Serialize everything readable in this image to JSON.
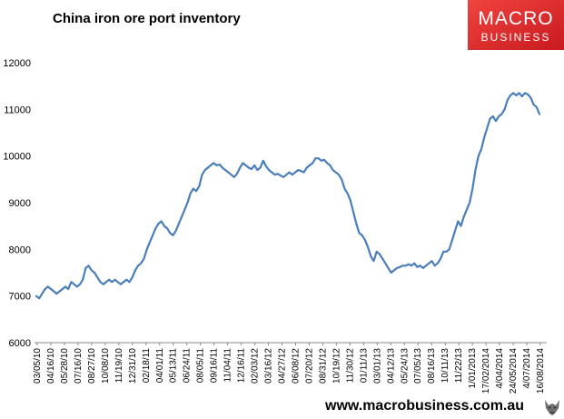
{
  "header": {
    "title": "China iron ore port inventory"
  },
  "logo": {
    "line1": "MACRO",
    "line2": "BUSINESS",
    "bg_color": "#e8262b"
  },
  "footer": {
    "url": "www.macrobusiness.com.au",
    "icon": "wolf-icon"
  },
  "chart_data": {
    "type": "line",
    "title": "China iron ore port inventory",
    "xlabel": "",
    "ylabel": "",
    "ylim": [
      6000,
      12000
    ],
    "yticks": [
      6000,
      7000,
      8000,
      9000,
      10000,
      11000,
      12000
    ],
    "grid": false,
    "legend": "none",
    "line_color": "#4a7ebb",
    "x_tick_labels": [
      "03/05/10",
      "04/16/10",
      "05/28/10",
      "07/16/10",
      "08/27/10",
      "10/08/10",
      "11/19/10",
      "12/31/10",
      "02/18/11",
      "04/01/11",
      "05/13/11",
      "06/24/11",
      "08/05/11",
      "09/16/11",
      "11/04/11",
      "12/16/11",
      "02/03/12",
      "03/16/12",
      "04/27/12",
      "06/08/12",
      "07/20/12",
      "08/31/12",
      "10/19/12",
      "11/30/12",
      "01/11/13",
      "03/01/13",
      "04/12/13",
      "05/24/13",
      "07/05/13",
      "08/16/13",
      "10/11/13",
      "11/22/13",
      "1/01/2013",
      "17/02/2014",
      "4/04/2014",
      "24/05/2014",
      "4/07/2014",
      "16/08/2014"
    ],
    "series": [
      {
        "values": [
          7000,
          6950,
          7050,
          7150,
          7200,
          7150,
          7100,
          7050,
          7100,
          7150,
          7200,
          7150,
          7300,
          7250,
          7200,
          7250,
          7350,
          7600,
          7650,
          7550,
          7500,
          7400,
          7300,
          7250,
          7300,
          7350,
          7300,
          7350,
          7300,
          7250,
          7300,
          7350,
          7300,
          7400,
          7550,
          7650,
          7700,
          7800,
          8000,
          8150,
          8300,
          8450,
          8550,
          8600,
          8500,
          8450,
          8350,
          8300,
          8400,
          8550,
          8700,
          8850,
          9000,
          9200,
          9300,
          9250,
          9350,
          9600,
          9700,
          9750,
          9800,
          9850,
          9800,
          9820,
          9750,
          9700,
          9650,
          9600,
          9550,
          9620,
          9750,
          9850,
          9800,
          9750,
          9720,
          9800,
          9700,
          9750,
          9900,
          9780,
          9700,
          9650,
          9600,
          9620,
          9580,
          9550,
          9600,
          9650,
          9600,
          9650,
          9700,
          9680,
          9650,
          9750,
          9800,
          9850,
          9950,
          9950,
          9900,
          9920,
          9850,
          9800,
          9700,
          9650,
          9600,
          9500,
          9300,
          9200,
          9050,
          8800,
          8550,
          8350,
          8300,
          8200,
          8050,
          7850,
          7750,
          7950,
          7900,
          7800,
          7700,
          7600,
          7500,
          7550,
          7600,
          7620,
          7650,
          7650,
          7680,
          7650,
          7700,
          7620,
          7650,
          7600,
          7650,
          7700,
          7750,
          7650,
          7700,
          7800,
          7950,
          7950,
          8000,
          8200,
          8400,
          8600,
          8500,
          8700,
          8850,
          9000,
          9300,
          9700,
          10000,
          10150,
          10400,
          10600,
          10800,
          10850,
          10750,
          10850,
          10900,
          11000,
          11200,
          11300,
          11350,
          11300,
          11350,
          11280,
          11350,
          11320,
          11250,
          11100,
          11050,
          10900
        ]
      }
    ]
  }
}
